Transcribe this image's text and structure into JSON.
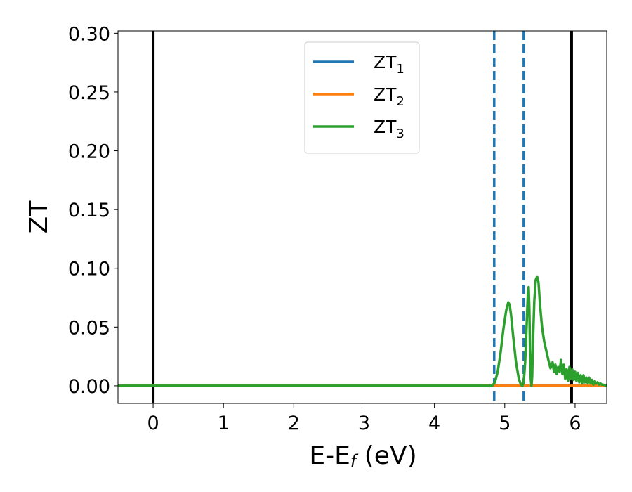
{
  "chart_data": {
    "type": "line",
    "xlabel": "E-E",
    "xlabel_sub": "f",
    "xlabel_unit": " (eV)",
    "ylabel": "ZT",
    "xlim": [
      -0.5,
      6.45
    ],
    "ylim": [
      -0.015,
      0.302
    ],
    "xticks": [
      0,
      1,
      2,
      3,
      4,
      5,
      6
    ],
    "xtick_labels": [
      "0",
      "1",
      "2",
      "3",
      "4",
      "5",
      "6"
    ],
    "yticks": [
      0.0,
      0.05,
      0.1,
      0.15,
      0.2,
      0.25,
      0.3
    ],
    "ytick_labels": [
      "0.00",
      "0.05",
      "0.10",
      "0.15",
      "0.20",
      "0.25",
      "0.30"
    ],
    "grid": false,
    "legend_position": "top-center",
    "vlines": [
      {
        "x": 0.0,
        "color": "#000000",
        "style": "solid"
      },
      {
        "x": 5.95,
        "color": "#000000",
        "style": "solid"
      },
      {
        "x": 4.85,
        "color": "#1f77b4",
        "style": "dashed"
      },
      {
        "x": 5.27,
        "color": "#1f77b4",
        "style": "dashed"
      }
    ],
    "series": [
      {
        "name": "ZT",
        "subscript": "1",
        "color": "#1f77b4",
        "x": [
          -0.5,
          6.45
        ],
        "y": [
          0.0,
          0.0
        ]
      },
      {
        "name": "ZT",
        "subscript": "2",
        "color": "#ff7f0e",
        "x": [
          -0.5,
          6.45
        ],
        "y": [
          0.0,
          0.0
        ]
      },
      {
        "name": "ZT",
        "subscript": "3",
        "color": "#2ca02c",
        "x": [
          -0.5,
          4.82,
          4.86,
          4.9,
          4.94,
          4.98,
          5.02,
          5.05,
          5.07,
          5.09,
          5.12,
          5.16,
          5.2,
          5.23,
          5.25,
          5.27,
          5.29,
          5.31,
          5.33,
          5.34,
          5.35,
          5.36,
          5.37,
          5.38,
          5.39,
          5.4,
          5.42,
          5.44,
          5.46,
          5.48,
          5.5,
          5.53,
          5.56,
          5.59,
          5.62,
          5.65,
          5.68,
          5.7,
          5.72,
          5.74,
          5.76,
          5.78,
          5.8,
          5.82,
          5.84,
          5.86,
          5.88,
          5.9,
          5.92,
          5.94,
          5.96,
          5.98,
          6.0,
          6.02,
          6.04,
          6.06,
          6.08,
          6.1,
          6.12,
          6.14,
          6.16,
          6.18,
          6.2,
          6.22,
          6.24,
          6.26,
          6.28,
          6.3,
          6.32,
          6.34,
          6.36,
          6.38,
          6.4,
          6.45
        ],
        "y": [
          0.0,
          0.0,
          0.003,
          0.012,
          0.028,
          0.048,
          0.064,
          0.071,
          0.069,
          0.06,
          0.042,
          0.02,
          0.006,
          0.001,
          0.0,
          0.003,
          0.02,
          0.05,
          0.08,
          0.084,
          0.065,
          0.03,
          0.006,
          0.0,
          0.008,
          0.035,
          0.072,
          0.09,
          0.093,
          0.088,
          0.07,
          0.05,
          0.038,
          0.03,
          0.022,
          0.015,
          0.02,
          0.012,
          0.018,
          0.01,
          0.016,
          0.012,
          0.022,
          0.01,
          0.018,
          0.006,
          0.014,
          0.004,
          0.016,
          0.006,
          0.014,
          0.005,
          0.012,
          0.004,
          0.011,
          0.003,
          0.009,
          0.002,
          0.009,
          0.003,
          0.007,
          0.002,
          0.007,
          0.002,
          0.005,
          0.001,
          0.004,
          0.002,
          0.003,
          0.001,
          0.002,
          0.001,
          0.001,
          0.0
        ]
      }
    ]
  }
}
